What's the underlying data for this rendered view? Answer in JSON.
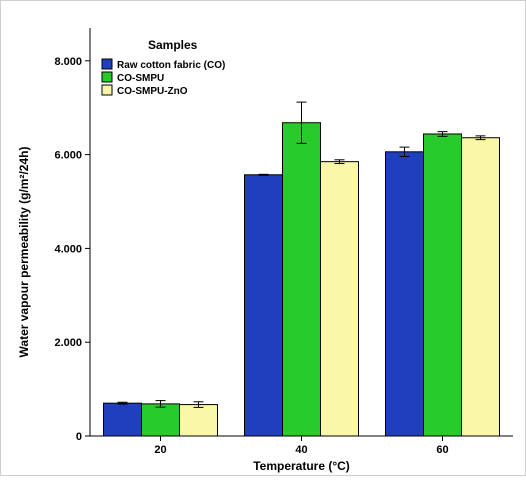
{
  "chart_data": {
    "type": "bar",
    "title": "",
    "xlabel": "Temperature (°C)",
    "ylabel": "Water vapour  permeability (g/m²/24h)",
    "ylim": [
      0,
      8700
    ],
    "yticks": [
      0,
      2000,
      4000,
      6000,
      8000
    ],
    "ytick_labels": [
      "0",
      "2.000",
      "4.000",
      "6.000",
      "8.000"
    ],
    "categories": [
      "20",
      "40",
      "60"
    ],
    "legend_title": "Samples",
    "legend_position": "top-left",
    "grid": false,
    "series": [
      {
        "name": "Raw cotton fabric (CO)",
        "color": "#1f3fbf",
        "values": [
          700,
          5570,
          6060
        ],
        "errors": [
          20,
          10,
          100
        ]
      },
      {
        "name": "CO-SMPU",
        "color": "#27cc2a",
        "values": [
          685,
          6680,
          6440
        ],
        "errors": [
          70,
          440,
          50
        ]
      },
      {
        "name": "CO-SMPU-ZnO",
        "color": "#fbf7a8",
        "values": [
          670,
          5850,
          6360
        ],
        "errors": [
          60,
          40,
          40
        ]
      }
    ]
  }
}
